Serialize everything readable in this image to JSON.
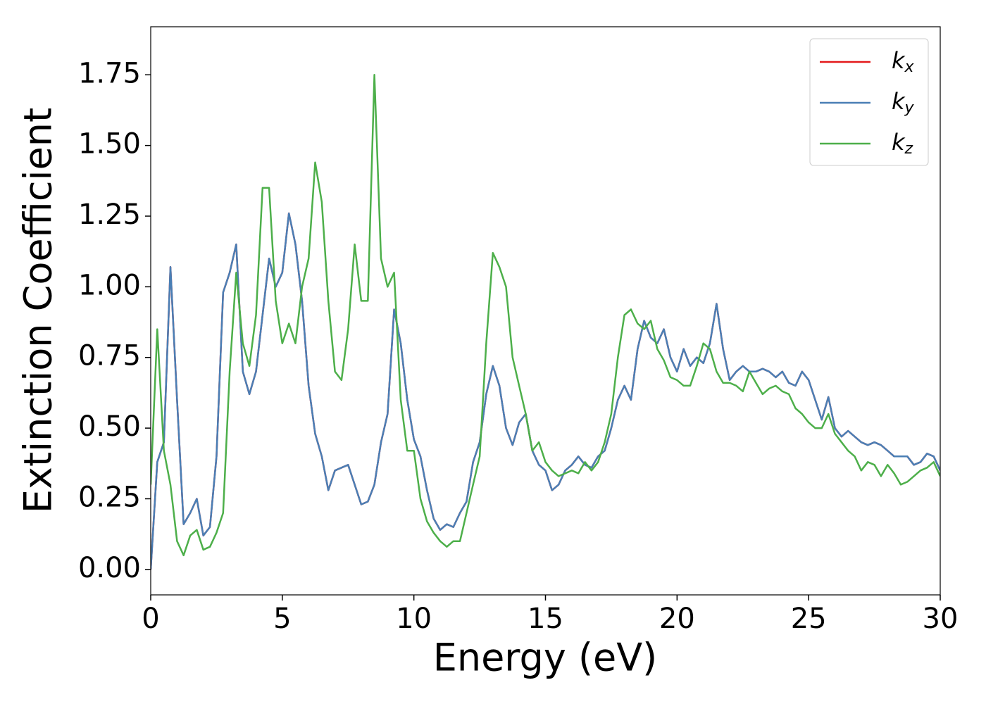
{
  "chart_data": {
    "type": "line",
    "xlabel": "Energy (eV)",
    "ylabel": "Extinction Coefficient",
    "x": [
      0,
      0.25,
      0.5,
      0.75,
      1,
      1.25,
      1.5,
      1.75,
      2,
      2.25,
      2.5,
      2.75,
      3,
      3.25,
      3.5,
      3.75,
      4,
      4.25,
      4.5,
      4.75,
      5,
      5.25,
      5.5,
      5.75,
      6,
      6.25,
      6.5,
      6.75,
      7,
      7.25,
      7.5,
      7.75,
      8,
      8.25,
      8.5,
      8.75,
      9,
      9.25,
      9.5,
      9.75,
      10,
      10.25,
      10.5,
      10.75,
      11,
      11.25,
      11.5,
      11.75,
      12,
      12.25,
      12.5,
      12.75,
      13,
      13.25,
      13.5,
      13.75,
      14,
      14.25,
      14.5,
      14.75,
      15,
      15.25,
      15.5,
      15.75,
      16,
      16.25,
      16.5,
      16.75,
      17,
      17.25,
      17.5,
      17.75,
      18,
      18.25,
      18.5,
      18.75,
      19,
      19.25,
      19.5,
      19.75,
      20,
      20.25,
      20.5,
      20.75,
      21,
      21.25,
      21.5,
      21.75,
      22,
      22.25,
      22.5,
      22.75,
      23,
      23.25,
      23.5,
      23.75,
      24,
      24.25,
      24.5,
      24.75,
      25,
      25.25,
      25.5,
      25.75,
      26,
      26.25,
      26.5,
      26.75,
      27,
      27.25,
      27.5,
      27.75,
      28,
      28.25,
      28.5,
      28.75,
      29,
      29.25,
      29.5,
      29.75,
      30
    ],
    "series": [
      {
        "name": "kx",
        "color": "#e41a1c",
        "values": [
          0,
          0.38,
          0.45,
          1.07,
          0.6,
          0.16,
          0.2,
          0.25,
          0.12,
          0.15,
          0.4,
          0.98,
          1.05,
          1.15,
          0.7,
          0.62,
          0.7,
          0.9,
          1.1,
          1.0,
          1.05,
          1.26,
          1.15,
          0.95,
          0.65,
          0.48,
          0.4,
          0.28,
          0.35,
          0.36,
          0.37,
          0.3,
          0.23,
          0.24,
          0.3,
          0.45,
          0.55,
          0.92,
          0.8,
          0.6,
          0.46,
          0.4,
          0.28,
          0.18,
          0.14,
          0.16,
          0.15,
          0.2,
          0.24,
          0.38,
          0.45,
          0.62,
          0.72,
          0.65,
          0.5,
          0.44,
          0.52,
          0.55,
          0.42,
          0.37,
          0.35,
          0.28,
          0.3,
          0.35,
          0.37,
          0.4,
          0.37,
          0.36,
          0.4,
          0.42,
          0.5,
          0.6,
          0.65,
          0.6,
          0.78,
          0.88,
          0.82,
          0.8,
          0.85,
          0.75,
          0.7,
          0.78,
          0.72,
          0.75,
          0.73,
          0.8,
          0.94,
          0.78,
          0.67,
          0.7,
          0.72,
          0.7,
          0.7,
          0.71,
          0.7,
          0.68,
          0.7,
          0.66,
          0.65,
          0.7,
          0.67,
          0.6,
          0.53,
          0.61,
          0.5,
          0.47,
          0.49,
          0.47,
          0.45,
          0.44,
          0.45,
          0.44,
          0.42,
          0.4,
          0.4,
          0.4,
          0.37,
          0.38,
          0.41,
          0.4,
          0.35
        ]
      },
      {
        "name": "ky",
        "color": "#4a7fb5",
        "values": [
          0,
          0.38,
          0.45,
          1.07,
          0.6,
          0.16,
          0.2,
          0.25,
          0.12,
          0.15,
          0.4,
          0.98,
          1.05,
          1.15,
          0.7,
          0.62,
          0.7,
          0.9,
          1.1,
          1.0,
          1.05,
          1.26,
          1.15,
          0.95,
          0.65,
          0.48,
          0.4,
          0.28,
          0.35,
          0.36,
          0.37,
          0.3,
          0.23,
          0.24,
          0.3,
          0.45,
          0.55,
          0.92,
          0.8,
          0.6,
          0.46,
          0.4,
          0.28,
          0.18,
          0.14,
          0.16,
          0.15,
          0.2,
          0.24,
          0.38,
          0.45,
          0.62,
          0.72,
          0.65,
          0.5,
          0.44,
          0.52,
          0.55,
          0.42,
          0.37,
          0.35,
          0.28,
          0.3,
          0.35,
          0.37,
          0.4,
          0.37,
          0.36,
          0.4,
          0.42,
          0.5,
          0.6,
          0.65,
          0.6,
          0.78,
          0.88,
          0.82,
          0.8,
          0.85,
          0.75,
          0.7,
          0.78,
          0.72,
          0.75,
          0.73,
          0.8,
          0.94,
          0.78,
          0.67,
          0.7,
          0.72,
          0.7,
          0.7,
          0.71,
          0.7,
          0.68,
          0.7,
          0.66,
          0.65,
          0.7,
          0.67,
          0.6,
          0.53,
          0.61,
          0.5,
          0.47,
          0.49,
          0.47,
          0.45,
          0.44,
          0.45,
          0.44,
          0.42,
          0.4,
          0.4,
          0.4,
          0.37,
          0.38,
          0.41,
          0.4,
          0.35
        ]
      },
      {
        "name": "kz",
        "color": "#4daf4a",
        "values": [
          0.3,
          0.85,
          0.42,
          0.3,
          0.1,
          0.05,
          0.12,
          0.14,
          0.07,
          0.08,
          0.13,
          0.2,
          0.7,
          1.05,
          0.8,
          0.72,
          0.9,
          1.35,
          1.35,
          0.95,
          0.8,
          0.87,
          0.8,
          1.0,
          1.1,
          1.44,
          1.3,
          0.95,
          0.7,
          0.67,
          0.85,
          1.15,
          0.95,
          0.95,
          1.75,
          1.1,
          1.0,
          1.05,
          0.6,
          0.42,
          0.42,
          0.25,
          0.17,
          0.13,
          0.1,
          0.08,
          0.1,
          0.1,
          0.2,
          0.3,
          0.4,
          0.8,
          1.12,
          1.07,
          1.0,
          0.75,
          0.65,
          0.55,
          0.42,
          0.45,
          0.38,
          0.35,
          0.33,
          0.34,
          0.35,
          0.34,
          0.38,
          0.35,
          0.38,
          0.45,
          0.55,
          0.75,
          0.9,
          0.92,
          0.87,
          0.85,
          0.88,
          0.78,
          0.74,
          0.68,
          0.67,
          0.65,
          0.65,
          0.72,
          0.8,
          0.78,
          0.7,
          0.66,
          0.66,
          0.65,
          0.63,
          0.7,
          0.66,
          0.62,
          0.64,
          0.65,
          0.63,
          0.62,
          0.57,
          0.55,
          0.52,
          0.5,
          0.5,
          0.55,
          0.48,
          0.45,
          0.42,
          0.4,
          0.35,
          0.38,
          0.37,
          0.33,
          0.37,
          0.34,
          0.3,
          0.31,
          0.33,
          0.35,
          0.36,
          0.38,
          0.33
        ]
      }
    ],
    "xlim": [
      0,
      30
    ],
    "xticks": [
      0,
      5,
      10,
      15,
      20,
      25,
      30
    ],
    "ylim": [
      -0.09,
      1.92
    ],
    "yticks": [
      {
        "value": 0,
        "label": "0.00"
      },
      0.25,
      {
        "value": 0.5,
        "label": "0.50"
      },
      0.75,
      {
        "value": 1,
        "label": "1.00"
      },
      1.25,
      {
        "value": 1.5,
        "label": "1.50"
      },
      1.75
    ],
    "legend": "upper right"
  }
}
